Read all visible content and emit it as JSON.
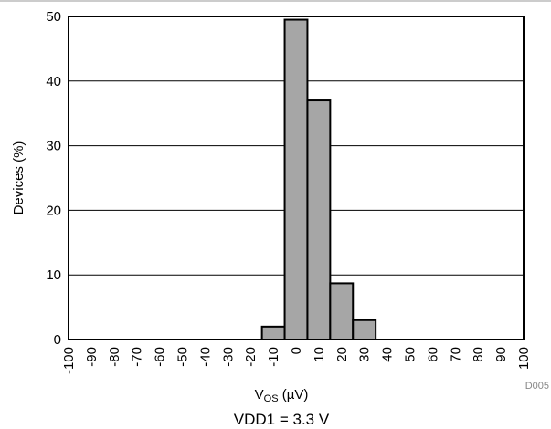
{
  "chart_data": {
    "type": "bar",
    "categories": [
      "-100",
      "-90",
      "-80",
      "-70",
      "-60",
      "-50",
      "-40",
      "-30",
      "-20",
      "-10",
      "0",
      "10",
      "20",
      "30",
      "40",
      "50",
      "60",
      "70",
      "80",
      "90",
      "100"
    ],
    "bins": [
      {
        "from": -15,
        "to": -5,
        "value": 2
      },
      {
        "from": -5,
        "to": 5,
        "value": 49.5
      },
      {
        "from": 5,
        "to": 15,
        "value": 37
      },
      {
        "from": 15,
        "to": 25,
        "value": 8.7
      },
      {
        "from": 25,
        "to": 35,
        "value": 3
      }
    ],
    "xlabel_main": "V",
    "xlabel_sub": "OS",
    "xlabel_unit": " (µV)",
    "ylabel": "Devices (%)",
    "xlim": [
      -100,
      100
    ],
    "ylim": [
      0,
      50
    ],
    "yticks": [
      "0",
      "10",
      "20",
      "30",
      "40",
      "50"
    ],
    "grid": "horizontal",
    "bar_color": "#a6a6a6",
    "caption": "VDD1 = 3.3 V",
    "code": "D005"
  }
}
